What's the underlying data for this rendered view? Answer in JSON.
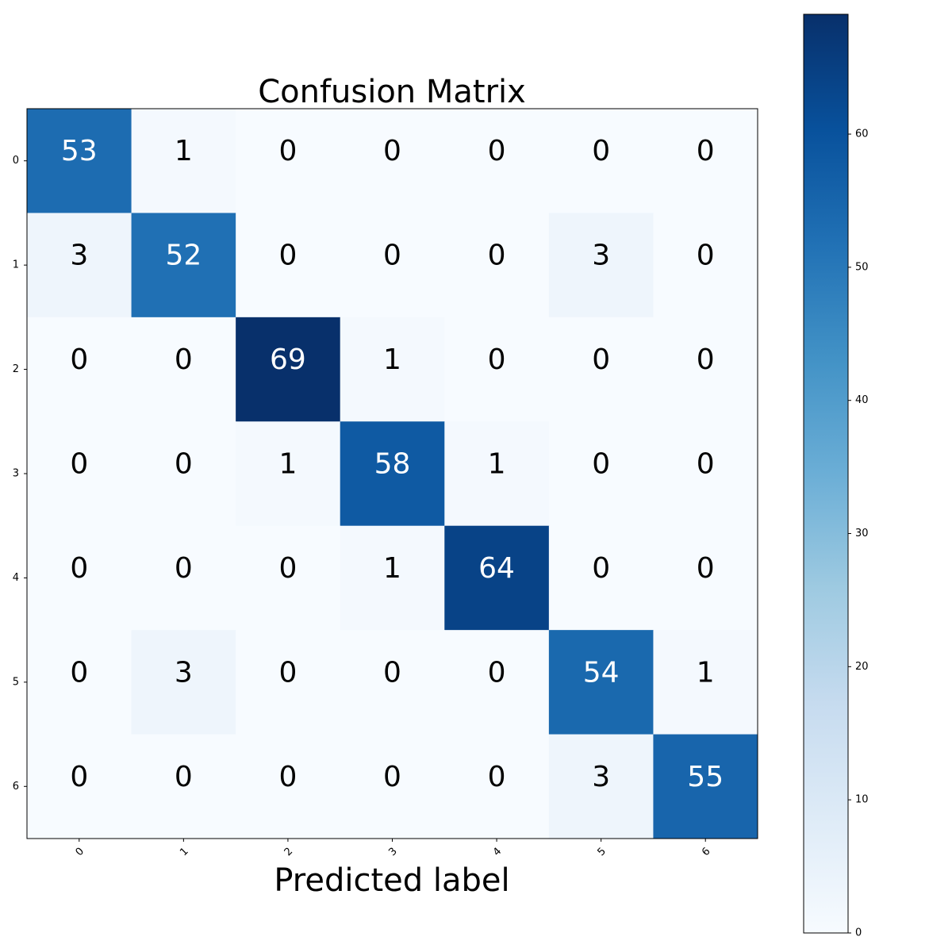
{
  "chart_data": {
    "type": "heatmap",
    "title": "Confusion Matrix",
    "xlabel": "Predicted label",
    "ylabel": "",
    "x_categories": [
      "0",
      "1",
      "2",
      "3",
      "4",
      "5",
      "6"
    ],
    "y_categories": [
      "0",
      "1",
      "2",
      "3",
      "4",
      "5",
      "6"
    ],
    "matrix": [
      [
        53,
        1,
        0,
        0,
        0,
        0,
        0
      ],
      [
        3,
        52,
        0,
        0,
        0,
        3,
        0
      ],
      [
        0,
        0,
        69,
        1,
        0,
        0,
        0
      ],
      [
        0,
        0,
        1,
        58,
        1,
        0,
        0
      ],
      [
        0,
        0,
        0,
        1,
        64,
        0,
        0
      ],
      [
        0,
        3,
        0,
        0,
        0,
        54,
        1
      ],
      [
        0,
        0,
        0,
        0,
        0,
        3,
        55
      ]
    ],
    "colormap": "Blues",
    "colormap_stops": [
      "#f7fbff",
      "#deebf7",
      "#c6dbef",
      "#9ecae1",
      "#6baed6",
      "#4292c6",
      "#2171b5",
      "#08519c",
      "#08306b"
    ],
    "colorbar": {
      "range": [
        0,
        69
      ],
      "ticks": [
        0,
        10,
        20,
        30,
        40,
        50,
        60
      ],
      "tick_labels": [
        "0",
        "10",
        "20",
        "30",
        "40",
        "50",
        "60"
      ]
    },
    "text_colors": {
      "light": "#ffffff",
      "dark": "#000000"
    }
  }
}
